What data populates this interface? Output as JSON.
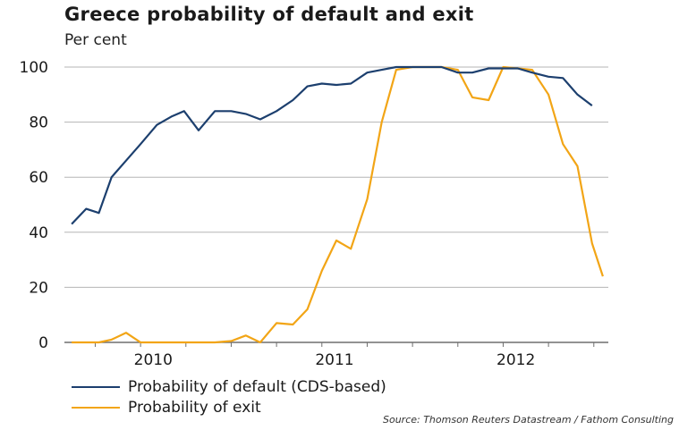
{
  "chart_data": {
    "type": "line",
    "title": "Greece probability of default and exit",
    "subtitle": "Per cent",
    "xlabel": "",
    "ylabel": "",
    "xlim": [
      2009.58,
      2012.58
    ],
    "ylim": [
      0,
      100
    ],
    "yticks": [
      0,
      20,
      40,
      60,
      80,
      100
    ],
    "xticks": [
      {
        "value": 2010.0,
        "label": "2010"
      },
      {
        "value": 2011.0,
        "label": "2011"
      },
      {
        "value": 2012.0,
        "label": "2012"
      }
    ],
    "grid": "horizontal",
    "legend_position": "bottom-left",
    "series": [
      {
        "name": "Probability of default (CDS-based)",
        "color": "#1c3f6e",
        "points": [
          [
            2009.62,
            43
          ],
          [
            2009.7,
            48.5
          ],
          [
            2009.77,
            47
          ],
          [
            2009.84,
            60
          ],
          [
            2009.92,
            66
          ],
          [
            2010.0,
            72
          ],
          [
            2010.09,
            79
          ],
          [
            2010.17,
            82
          ],
          [
            2010.24,
            84
          ],
          [
            2010.32,
            77
          ],
          [
            2010.41,
            84
          ],
          [
            2010.5,
            84
          ],
          [
            2010.58,
            83
          ],
          [
            2010.66,
            81
          ],
          [
            2010.75,
            84
          ],
          [
            2010.84,
            88
          ],
          [
            2010.92,
            93
          ],
          [
            2011.0,
            94
          ],
          [
            2011.08,
            93.5
          ],
          [
            2011.16,
            94
          ],
          [
            2011.25,
            98
          ],
          [
            2011.33,
            99
          ],
          [
            2011.41,
            100
          ],
          [
            2011.5,
            100
          ],
          [
            2011.58,
            100
          ],
          [
            2011.66,
            100
          ],
          [
            2011.75,
            98
          ],
          [
            2011.83,
            98
          ],
          [
            2011.92,
            99.5
          ],
          [
            2012.0,
            99.5
          ],
          [
            2012.08,
            99.5
          ],
          [
            2012.16,
            98
          ],
          [
            2012.25,
            96.5
          ],
          [
            2012.33,
            96
          ],
          [
            2012.41,
            90
          ],
          [
            2012.49,
            86
          ]
        ]
      },
      {
        "name": "Probability of exit",
        "color": "#f2a516",
        "points": [
          [
            2009.62,
            0
          ],
          [
            2009.7,
            0
          ],
          [
            2009.77,
            0
          ],
          [
            2009.84,
            1
          ],
          [
            2009.92,
            3.5
          ],
          [
            2010.0,
            0
          ],
          [
            2010.09,
            0
          ],
          [
            2010.17,
            0
          ],
          [
            2010.24,
            0
          ],
          [
            2010.32,
            0
          ],
          [
            2010.41,
            0
          ],
          [
            2010.5,
            0.5
          ],
          [
            2010.58,
            2.5
          ],
          [
            2010.66,
            0
          ],
          [
            2010.75,
            7
          ],
          [
            2010.84,
            6.5
          ],
          [
            2010.92,
            12
          ],
          [
            2011.0,
            26
          ],
          [
            2011.08,
            37
          ],
          [
            2011.16,
            34
          ],
          [
            2011.25,
            52
          ],
          [
            2011.33,
            80
          ],
          [
            2011.41,
            99
          ],
          [
            2011.5,
            100
          ],
          [
            2011.58,
            100
          ],
          [
            2011.66,
            100
          ],
          [
            2011.75,
            99
          ],
          [
            2011.83,
            89
          ],
          [
            2011.92,
            88
          ],
          [
            2012.0,
            100
          ],
          [
            2012.08,
            99.5
          ],
          [
            2012.16,
            99
          ],
          [
            2012.25,
            90
          ],
          [
            2012.33,
            72
          ],
          [
            2012.41,
            64
          ],
          [
            2012.49,
            36
          ],
          [
            2012.55,
            24
          ]
        ]
      }
    ]
  },
  "source": "Source: Thomson Reuters Datastream / Fathom Consulting"
}
